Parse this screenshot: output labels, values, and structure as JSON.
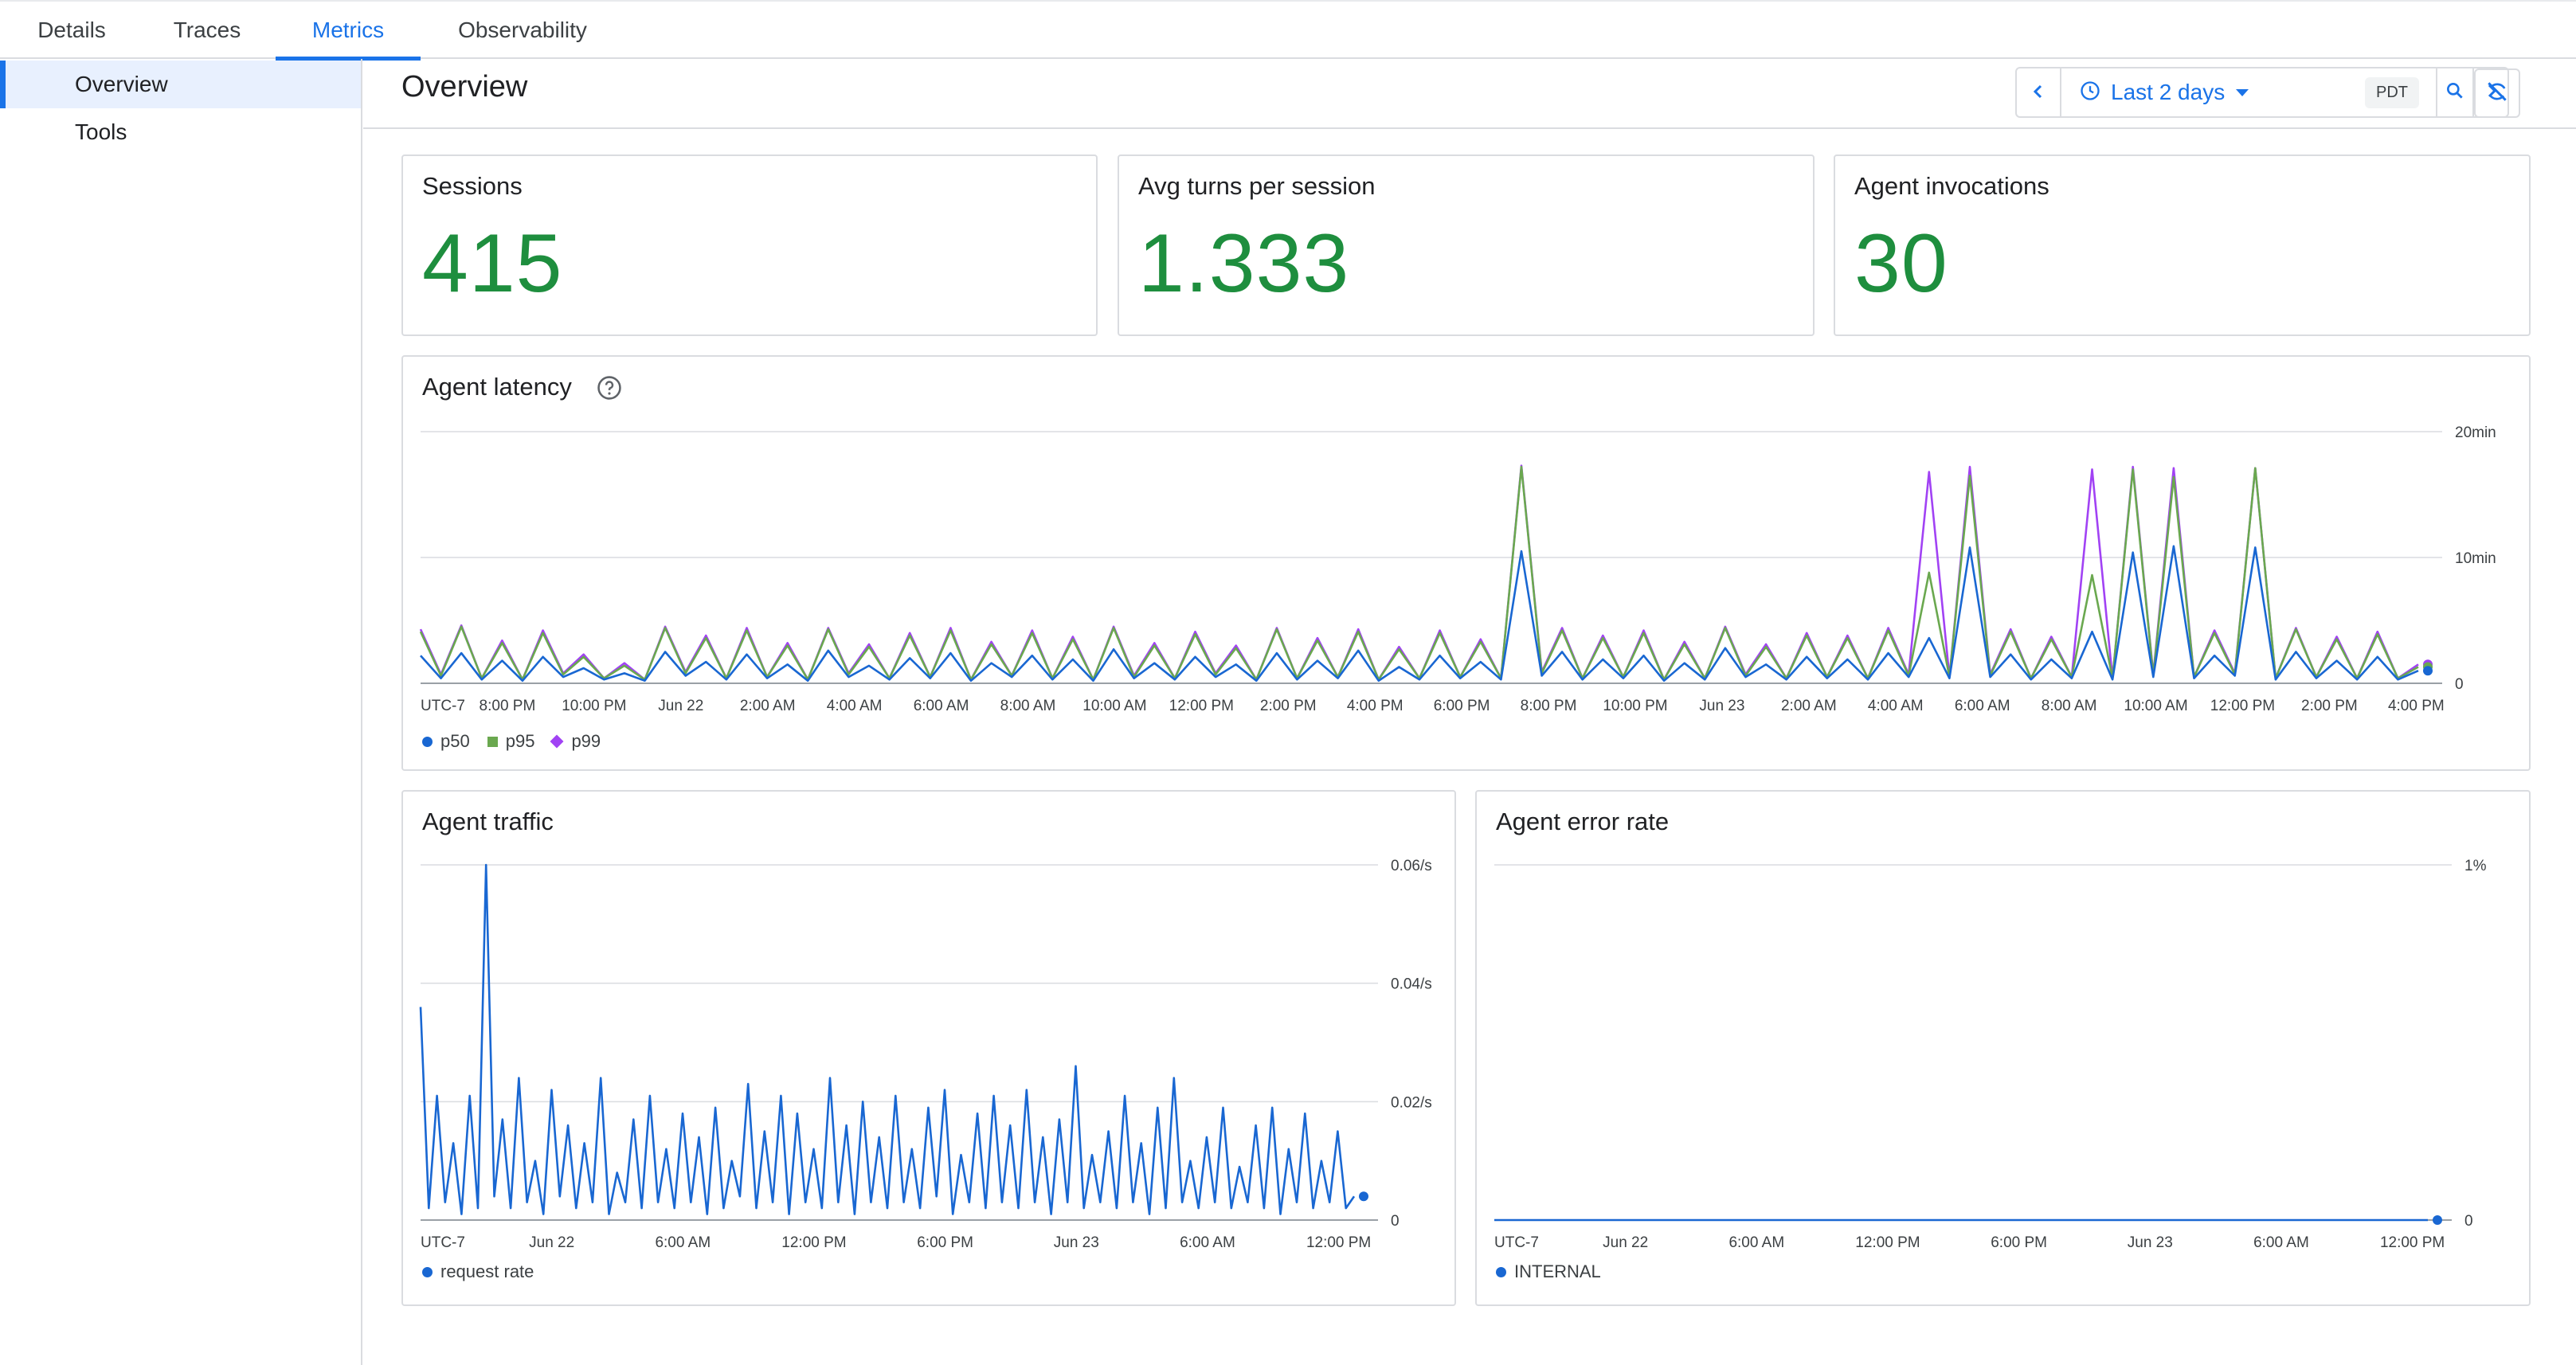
{
  "tabs": [
    {
      "label": "Details"
    },
    {
      "label": "Traces"
    },
    {
      "label": "Metrics",
      "active": true
    },
    {
      "label": "Observability"
    }
  ],
  "sidebar": {
    "items": [
      {
        "label": "Overview",
        "active": true
      },
      {
        "label": "Tools"
      }
    ]
  },
  "header": {
    "title": "Overview",
    "time_range": "Last 2 days",
    "timezone": "PDT",
    "icons": [
      "chevron-left-icon",
      "clock-icon",
      "dropdown-arrow-icon",
      "zoom-icon",
      "chevron-right-icon",
      "sync-off-icon"
    ]
  },
  "stats": [
    {
      "label": "Sessions",
      "value": "415"
    },
    {
      "label": "Avg turns per session",
      "value": "1.333"
    },
    {
      "label": "Agent invocations",
      "value": "30"
    }
  ],
  "colors": {
    "accent": "#1a73e8",
    "stat_green": "#1e8e3e",
    "p50": "#1967d2",
    "p95": "#6aa84f",
    "p99": "#a142f4"
  },
  "chart_data": [
    {
      "type": "line",
      "title": "Agent latency",
      "x_ticks": [
        "UTC-7",
        "8:00 PM",
        "10:00 PM",
        "Jun 22",
        "2:00 AM",
        "4:00 AM",
        "6:00 AM",
        "8:00 AM",
        "10:00 AM",
        "12:00 PM",
        "2:00 PM",
        "4:00 PM",
        "6:00 PM",
        "8:00 PM",
        "10:00 PM",
        "Jun 23",
        "2:00 AM",
        "4:00 AM",
        "6:00 AM",
        "8:00 AM",
        "10:00 AM",
        "12:00 PM",
        "2:00 PM",
        "4:00 PM"
      ],
      "y_ticks": [
        "0",
        "10min",
        "20min"
      ],
      "ylim": [
        0,
        20
      ],
      "y_unit": "min",
      "grid": true,
      "legend_position": "bottom-left",
      "series": [
        {
          "name": "p50",
          "values": [
            2.2,
            0.4,
            2.4,
            0.3,
            1.8,
            0.2,
            2.1,
            0.5,
            1.2,
            0.3,
            0.8,
            0.2,
            2.5,
            0.6,
            1.7,
            0.3,
            2.3,
            0.4,
            1.5,
            0.2,
            2.6,
            0.5,
            1.4,
            0.3,
            2.0,
            0.4,
            2.4,
            0.2,
            1.6,
            0.5,
            2.2,
            0.3,
            1.9,
            0.2,
            2.7,
            0.4,
            1.6,
            0.3,
            2.1,
            0.5,
            1.5,
            0.2,
            2.4,
            0.3,
            1.8,
            0.4,
            2.6,
            0.2,
            1.3,
            0.3,
            2.2,
            0.4,
            1.7,
            0.3,
            10.5,
            0.6,
            2.5,
            0.3,
            1.9,
            0.4,
            2.2,
            0.2,
            1.6,
            0.3,
            2.8,
            0.5,
            1.5,
            0.3,
            2.1,
            0.4,
            1.9,
            0.3,
            2.4,
            0.5,
            3.6,
            0.4,
            10.8,
            0.5,
            2.3,
            0.3,
            1.9,
            0.4,
            4.1,
            0.3,
            10.4,
            0.5,
            10.9,
            0.4,
            2.2,
            0.6,
            10.8,
            0.3,
            2.5,
            0.4,
            1.8,
            0.3,
            2.1,
            0.3,
            1.0
          ]
        },
        {
          "name": "p95",
          "values": [
            4.1,
            0.6,
            4.5,
            0.4,
            3.2,
            0.3,
            4.0,
            0.7,
            2.1,
            0.4,
            1.4,
            0.3,
            4.4,
            0.8,
            3.6,
            0.4,
            4.2,
            0.5,
            3.0,
            0.3,
            4.3,
            0.7,
            2.9,
            0.4,
            3.8,
            0.5,
            4.2,
            0.3,
            3.1,
            0.6,
            4.0,
            0.4,
            3.5,
            0.3,
            4.4,
            0.5,
            3.0,
            0.4,
            3.9,
            0.7,
            2.8,
            0.3,
            4.3,
            0.4,
            3.4,
            0.5,
            4.1,
            0.3,
            2.7,
            0.4,
            4.0,
            0.5,
            3.3,
            0.4,
            17.2,
            0.8,
            4.2,
            0.4,
            3.6,
            0.5,
            4.0,
            0.3,
            3.1,
            0.4,
            4.4,
            0.6,
            2.9,
            0.4,
            3.8,
            0.5,
            3.6,
            0.4,
            4.2,
            0.6,
            8.8,
            0.5,
            16.5,
            0.6,
            4.1,
            0.4,
            3.5,
            0.5,
            8.6,
            0.4,
            17.0,
            0.6,
            16.4,
            0.5,
            4.0,
            0.7,
            17.1,
            0.4,
            4.3,
            0.5,
            3.5,
            0.4,
            3.9,
            0.4,
            1.3
          ]
        },
        {
          "name": "p99",
          "values": [
            4.3,
            0.7,
            4.6,
            0.4,
            3.4,
            0.3,
            4.2,
            0.8,
            2.3,
            0.4,
            1.6,
            0.3,
            4.5,
            0.9,
            3.8,
            0.4,
            4.4,
            0.5,
            3.2,
            0.3,
            4.4,
            0.8,
            3.1,
            0.4,
            4.0,
            0.5,
            4.4,
            0.3,
            3.3,
            0.6,
            4.2,
            0.4,
            3.7,
            0.3,
            4.5,
            0.6,
            3.2,
            0.4,
            4.1,
            0.8,
            3.0,
            0.3,
            4.4,
            0.4,
            3.6,
            0.5,
            4.3,
            0.3,
            2.9,
            0.4,
            4.2,
            0.5,
            3.5,
            0.4,
            17.3,
            0.9,
            4.4,
            0.4,
            3.8,
            0.5,
            4.2,
            0.3,
            3.3,
            0.4,
            4.5,
            0.7,
            3.1,
            0.4,
            4.0,
            0.5,
            3.8,
            0.4,
            4.4,
            0.7,
            16.8,
            0.5,
            17.2,
            0.7,
            4.3,
            0.4,
            3.7,
            0.5,
            17.0,
            0.4,
            17.2,
            0.7,
            17.1,
            0.5,
            4.2,
            0.8,
            17.1,
            0.4,
            4.4,
            0.5,
            3.7,
            0.4,
            4.1,
            0.4,
            1.5
          ]
        }
      ]
    },
    {
      "type": "line",
      "title": "Agent traffic",
      "x_ticks": [
        "UTC-7",
        "Jun 22",
        "6:00 AM",
        "12:00 PM",
        "6:00 PM",
        "Jun 23",
        "6:00 AM",
        "12:00 PM"
      ],
      "y_ticks": [
        "0",
        "0.02/s",
        "0.04/s",
        "0.06/s"
      ],
      "ylim": [
        0,
        0.06
      ],
      "grid": true,
      "legend_position": "bottom-left",
      "series": [
        {
          "name": "request rate",
          "values": [
            0.036,
            0.002,
            0.021,
            0.003,
            0.013,
            0.001,
            0.021,
            0.002,
            0.06,
            0.004,
            0.017,
            0.002,
            0.024,
            0.003,
            0.01,
            0.001,
            0.022,
            0.004,
            0.016,
            0.002,
            0.013,
            0.003,
            0.024,
            0.001,
            0.008,
            0.003,
            0.017,
            0.002,
            0.021,
            0.003,
            0.012,
            0.002,
            0.018,
            0.003,
            0.014,
            0.001,
            0.019,
            0.002,
            0.01,
            0.004,
            0.023,
            0.002,
            0.015,
            0.003,
            0.021,
            0.001,
            0.018,
            0.003,
            0.012,
            0.002,
            0.024,
            0.003,
            0.016,
            0.001,
            0.02,
            0.003,
            0.014,
            0.002,
            0.021,
            0.003,
            0.012,
            0.002,
            0.019,
            0.004,
            0.022,
            0.001,
            0.011,
            0.003,
            0.018,
            0.002,
            0.021,
            0.003,
            0.016,
            0.002,
            0.022,
            0.003,
            0.014,
            0.001,
            0.017,
            0.003,
            0.026,
            0.002,
            0.011,
            0.003,
            0.015,
            0.002,
            0.021,
            0.003,
            0.013,
            0.001,
            0.019,
            0.002,
            0.024,
            0.003,
            0.01,
            0.002,
            0.014,
            0.003,
            0.019,
            0.002,
            0.009,
            0.003,
            0.016,
            0.002,
            0.019,
            0.001,
            0.012,
            0.003,
            0.018,
            0.002,
            0.01,
            0.003,
            0.015,
            0.002,
            0.004
          ]
        }
      ]
    },
    {
      "type": "line",
      "title": "Agent error rate",
      "x_ticks": [
        "UTC-7",
        "Jun 22",
        "6:00 AM",
        "12:00 PM",
        "6:00 PM",
        "Jun 23",
        "6:00 AM",
        "12:00 PM"
      ],
      "y_ticks": [
        "0",
        "1%"
      ],
      "ylim": [
        0,
        1
      ],
      "y_unit": "%",
      "grid": true,
      "legend_position": "bottom-left",
      "series": [
        {
          "name": "INTERNAL",
          "values": [
            0,
            0,
            0,
            0,
            0,
            0,
            0,
            0,
            0,
            0,
            0,
            0,
            0,
            0,
            0,
            0,
            0,
            0,
            0,
            0,
            0,
            0,
            0,
            0,
            0,
            0,
            0,
            0,
            0,
            0
          ]
        }
      ]
    }
  ]
}
